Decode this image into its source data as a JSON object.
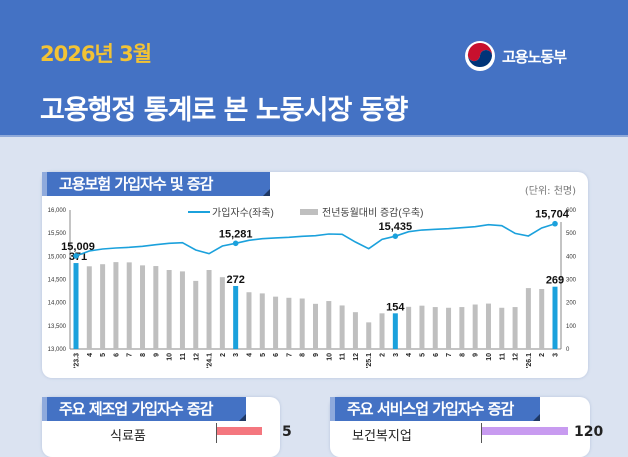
{
  "header": {
    "date": "2026년 3월",
    "title": "고용행정 통계로 본 노동시장 동향",
    "ministry": "고용노동부"
  },
  "main_chart_card": {
    "tab_title": "고용보험 가입자수 및 증감",
    "unit": "(단위: 천명)"
  },
  "chart_data": {
    "type": "bar+line",
    "categories": [
      "'23.3",
      "4",
      "5",
      "6",
      "7",
      "8",
      "9",
      "10",
      "11",
      "12",
      "'24.1",
      "2",
      "3",
      "4",
      "5",
      "6",
      "7",
      "8",
      "9",
      "10",
      "11",
      "12",
      "'25.1",
      "2",
      "3",
      "4",
      "5",
      "6",
      "7",
      "8",
      "9",
      "10",
      "11",
      "12",
      "'26.1",
      "2",
      "3"
    ],
    "series": [
      {
        "name": "가입자수(좌축)",
        "type": "line",
        "axis": "left",
        "color": "#1ba1dc",
        "values": [
          15009,
          15115,
          15158,
          15180,
          15194,
          15216,
          15252,
          15281,
          15295,
          15137,
          15058,
          15223,
          15281,
          15345,
          15381,
          15396,
          15410,
          15432,
          15446,
          15482,
          15475,
          15309,
          15165,
          15367,
          15435,
          15532,
          15568,
          15583,
          15597,
          15619,
          15640,
          15683,
          15662,
          15496,
          15439,
          15612,
          15704
        ],
        "labels": {
          "0": "15,009",
          "12": "15,281",
          "24": "15,435",
          "36": "15,704"
        }
      },
      {
        "name": "전년동월대비 증감(우축)",
        "type": "bar",
        "axis": "right",
        "color": "#bfbfbf",
        "highlight_color": "#1ba1dc",
        "values": [
          371,
          357,
          366,
          375,
          374,
          361,
          358,
          341,
          335,
          294,
          341,
          310,
          272,
          245,
          240,
          226,
          221,
          218,
          195,
          207,
          188,
          159,
          115,
          154,
          154,
          182,
          187,
          181,
          178,
          181,
          192,
          196,
          178,
          181,
          263,
          259,
          269
        ],
        "labels": {
          "0": "371",
          "12": "272",
          "24": "154",
          "36": "269"
        }
      }
    ],
    "left_axis": {
      "range": [
        13000,
        16000
      ],
      "ticks": [
        "13,000",
        "13,500",
        "14,000",
        "14,500",
        "15,000",
        "15,500",
        "16,000"
      ]
    },
    "right_axis": {
      "range": [
        0,
        600
      ],
      "ticks": [
        "0",
        "100",
        "200",
        "300",
        "400",
        "500",
        "600"
      ]
    },
    "legend": "top-center",
    "grid": false
  },
  "manufacturing_card": {
    "tab_title": "주요 제조업 가입자수 증감",
    "rows": [
      {
        "label": "식료품",
        "value": "5",
        "color": "#f4777f"
      }
    ]
  },
  "service_card": {
    "tab_title": "주요 서비스업 가입자수 증감",
    "rows": [
      {
        "label": "보건복지업",
        "value": "120",
        "color": "#c89bf0"
      }
    ]
  }
}
